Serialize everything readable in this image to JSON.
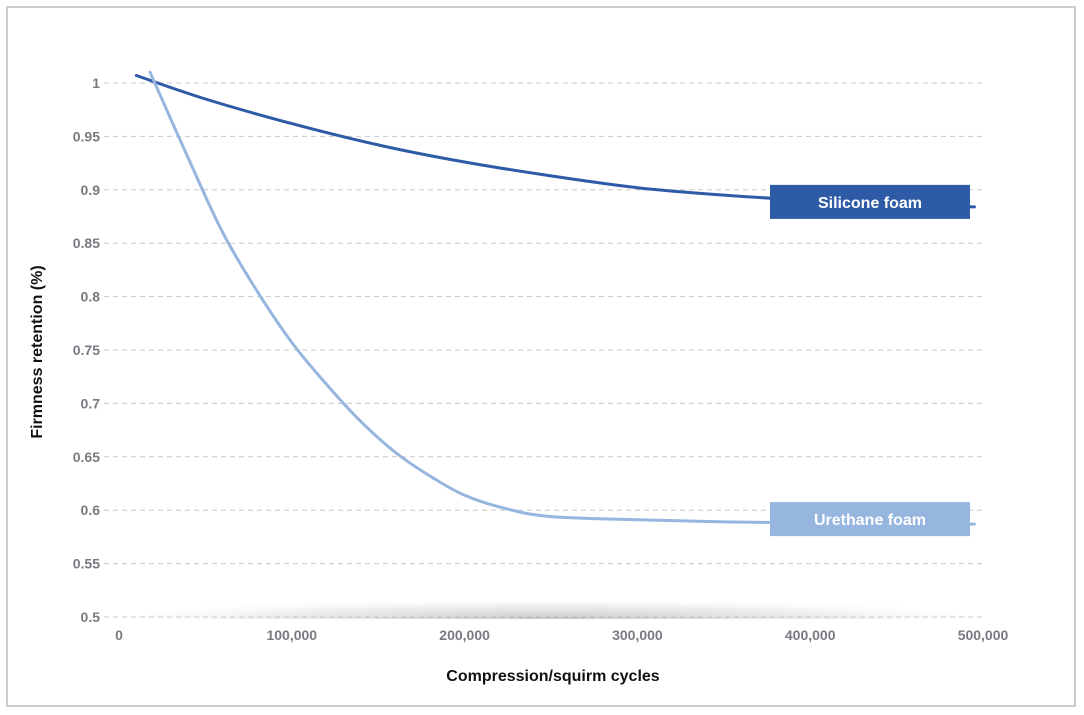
{
  "chart_data": {
    "type": "line",
    "title": "",
    "xlabel": "Compression/squirm cycles",
    "ylabel": "Firmness retention (%)",
    "xlim": [
      0,
      500000
    ],
    "ylim": [
      0.5,
      1.0
    ],
    "x_ticks": [
      0,
      100000,
      200000,
      300000,
      400000,
      500000
    ],
    "x_tick_labels": [
      "0",
      "100,000",
      "200,000",
      "300,000",
      "400,000",
      "500,000"
    ],
    "y_ticks": [
      0.5,
      0.55,
      0.6,
      0.65,
      0.7,
      0.75,
      0.8,
      0.85,
      0.9,
      0.95,
      1.0
    ],
    "y_tick_labels": [
      "0.5",
      "0.55",
      "0.6",
      "0.65",
      "0.7",
      "0.75",
      "0.8",
      "0.85",
      "0.9",
      "0.95",
      "1"
    ],
    "grid": true,
    "series": [
      {
        "name": "Silicone foam",
        "color": "#2d5ba6",
        "x": [
          10000,
          50000,
          100000,
          150000,
          200000,
          250000,
          300000,
          350000,
          400000,
          450000,
          495000
        ],
        "y": [
          1.007,
          0.985,
          0.962,
          0.942,
          0.926,
          0.913,
          0.902,
          0.895,
          0.89,
          0.886,
          0.884
        ]
      },
      {
        "name": "Urethane foam",
        "color": "#96b6e0",
        "x": [
          18000,
          40000,
          60000,
          80000,
          100000,
          120000,
          140000,
          160000,
          180000,
          200000,
          225000,
          250000,
          300000,
          350000,
          400000,
          450000,
          495000
        ],
        "y": [
          1.01,
          0.93,
          0.86,
          0.805,
          0.757,
          0.718,
          0.683,
          0.654,
          0.632,
          0.614,
          0.601,
          0.594,
          0.591,
          0.589,
          0.588,
          0.588,
          0.587
        ]
      }
    ]
  }
}
